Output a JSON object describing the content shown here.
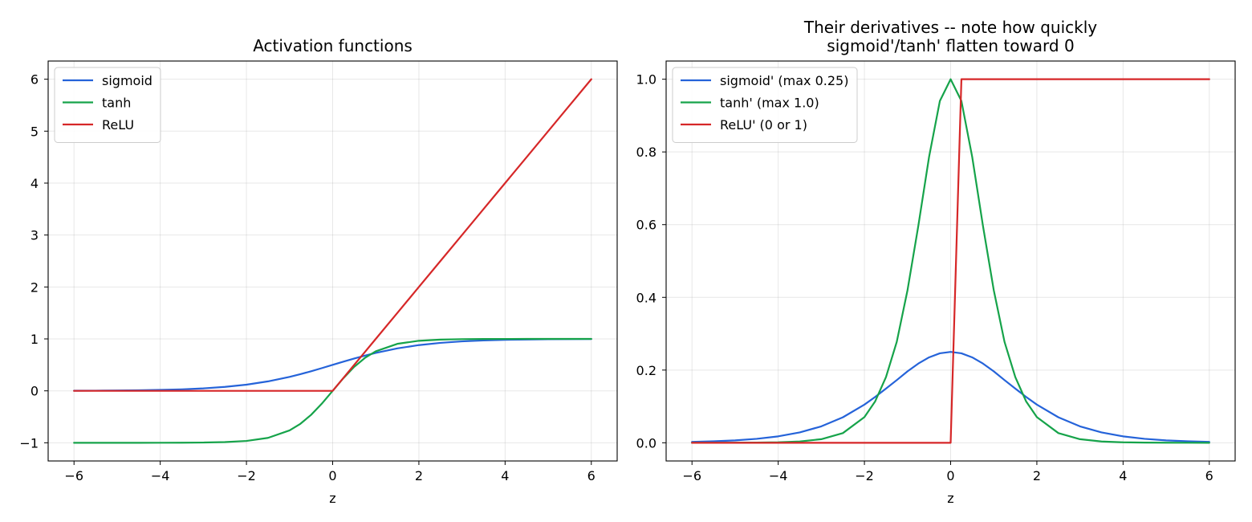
{
  "colors": {
    "sigmoid": "#2563d9",
    "tanh": "#16a34a",
    "relu": "#d62728"
  },
  "chart_data": [
    {
      "type": "line",
      "title": "Activation functions",
      "title_lines": [
        "Activation functions"
      ],
      "xlabel": "z",
      "ylabel": "",
      "xlim": [
        -6.6,
        6.6
      ],
      "ylim": [
        -1.35,
        6.35
      ],
      "xticks": [
        -6,
        -4,
        -2,
        0,
        2,
        4,
        6
      ],
      "xtick_labels": [
        "−6",
        "−4",
        "−2",
        "0",
        "2",
        "4",
        "6"
      ],
      "yticks": [
        -1,
        0,
        1,
        2,
        3,
        4,
        5,
        6
      ],
      "ytick_labels": [
        "−1",
        "0",
        "1",
        "2",
        "3",
        "4",
        "5",
        "6"
      ],
      "grid": true,
      "legend_position": "upper-left",
      "x": [
        -6,
        -5.5,
        -5,
        -4.5,
        -4,
        -3.5,
        -3,
        -2.5,
        -2,
        -1.5,
        -1,
        -0.75,
        -0.5,
        -0.25,
        0,
        0.25,
        0.5,
        0.75,
        1,
        1.5,
        2,
        2.5,
        3,
        3.5,
        4,
        4.5,
        5,
        5.5,
        6
      ],
      "series": [
        {
          "name": "sigmoid",
          "color_key": "sigmoid",
          "values": [
            0.0025,
            0.0041,
            0.0067,
            0.011,
            0.018,
            0.0293,
            0.0474,
            0.0759,
            0.1192,
            0.1824,
            0.2689,
            0.3208,
            0.3775,
            0.4378,
            0.5,
            0.5622,
            0.6225,
            0.6792,
            0.7311,
            0.8176,
            0.8808,
            0.9241,
            0.9526,
            0.9707,
            0.982,
            0.989,
            0.9933,
            0.9959,
            0.9975
          ]
        },
        {
          "name": "tanh",
          "color_key": "tanh",
          "values": [
            -1.0,
            -1.0,
            -0.9999,
            -0.9998,
            -0.9993,
            -0.9982,
            -0.9951,
            -0.9866,
            -0.964,
            -0.9051,
            -0.7616,
            -0.6351,
            -0.4621,
            -0.2449,
            0,
            0.2449,
            0.4621,
            0.6351,
            0.7616,
            0.9051,
            0.964,
            0.9866,
            0.9951,
            0.9982,
            0.9993,
            0.9998,
            0.9999,
            1.0,
            1.0
          ]
        },
        {
          "name": "ReLU",
          "color_key": "relu",
          "values": [
            0,
            0,
            0,
            0,
            0,
            0,
            0,
            0,
            0,
            0,
            0,
            0,
            0,
            0,
            0,
            0.25,
            0.5,
            0.75,
            1,
            1.5,
            2,
            2.5,
            3,
            3.5,
            4,
            4.5,
            5,
            5.5,
            6
          ]
        }
      ]
    },
    {
      "type": "line",
      "title": "Their derivatives -- note how quickly sigmoid'/tanh' flatten toward 0",
      "title_lines": [
        "Their derivatives -- note how quickly",
        "sigmoid'/tanh' flatten toward 0"
      ],
      "xlabel": "z",
      "ylabel": "",
      "xlim": [
        -6.6,
        6.6
      ],
      "ylim": [
        -0.05,
        1.05
      ],
      "xticks": [
        -6,
        -4,
        -2,
        0,
        2,
        4,
        6
      ],
      "xtick_labels": [
        "−6",
        "−4",
        "−2",
        "0",
        "2",
        "4",
        "6"
      ],
      "yticks": [
        0,
        0.2,
        0.4,
        0.6,
        0.8,
        1.0
      ],
      "ytick_labels": [
        "0.0",
        "0.2",
        "0.4",
        "0.6",
        "0.8",
        "1.0"
      ],
      "grid": true,
      "legend_position": "upper-left",
      "x": [
        -6,
        -5.5,
        -5,
        -4.5,
        -4,
        -3.5,
        -3,
        -2.5,
        -2,
        -1.75,
        -1.5,
        -1.25,
        -1,
        -0.75,
        -0.5,
        -0.25,
        0,
        0.25,
        0.5,
        0.75,
        1,
        1.25,
        1.5,
        1.75,
        2,
        2.5,
        3,
        3.5,
        4,
        4.5,
        5,
        5.5,
        6
      ],
      "series": [
        {
          "name": "sigmoid' (max 0.25)",
          "color_key": "sigmoid",
          "values": [
            0.0025,
            0.0041,
            0.0066,
            0.0109,
            0.0177,
            0.0285,
            0.0452,
            0.0701,
            0.105,
            0.1262,
            0.1491,
            0.1724,
            0.1966,
            0.2179,
            0.235,
            0.2461,
            0.25,
            0.2461,
            0.235,
            0.2179,
            0.1966,
            0.1724,
            0.1491,
            0.1262,
            0.105,
            0.0701,
            0.0452,
            0.0285,
            0.0177,
            0.0109,
            0.0066,
            0.0041,
            0.0025
          ]
        },
        {
          "name": "tanh' (max 1.0)",
          "color_key": "tanh",
          "values": [
            0.0,
            0.0001,
            0.0002,
            0.0005,
            0.0013,
            0.0036,
            0.0099,
            0.0266,
            0.0707,
            0.1141,
            0.1807,
            0.2776,
            0.42,
            0.5966,
            0.7864,
            0.94,
            1.0,
            0.94,
            0.7864,
            0.5966,
            0.42,
            0.2776,
            0.1807,
            0.1141,
            0.0707,
            0.0266,
            0.0099,
            0.0036,
            0.0013,
            0.0005,
            0.0002,
            0.0001,
            0.0
          ]
        },
        {
          "name": "ReLU' (0 or 1)",
          "color_key": "relu",
          "values": [
            0,
            0,
            0,
            0,
            0,
            0,
            0,
            0,
            0,
            0,
            0,
            0,
            0,
            0,
            0,
            0,
            0,
            1,
            1,
            1,
            1,
            1,
            1,
            1,
            1,
            1,
            1,
            1,
            1,
            1,
            1,
            1,
            1
          ]
        }
      ]
    }
  ]
}
